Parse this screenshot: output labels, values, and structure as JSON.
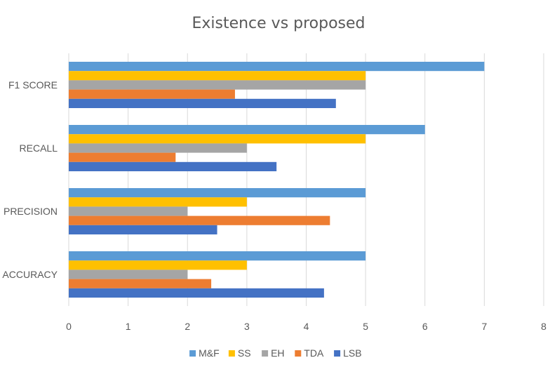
{
  "chart_data": {
    "type": "bar",
    "orientation": "horizontal",
    "title": "Existence vs proposed",
    "categories": [
      "F1 SCORE",
      "RECALL",
      "PRECISION",
      "ACCURACY"
    ],
    "series": [
      {
        "name": "M&F",
        "color": "#5b9bd5",
        "values": [
          7,
          6,
          5,
          5
        ]
      },
      {
        "name": "SS",
        "color": "#ffc000",
        "values": [
          5,
          5,
          3,
          3
        ]
      },
      {
        "name": "EH",
        "color": "#a5a5a5",
        "values": [
          5,
          3,
          2,
          2
        ]
      },
      {
        "name": "TDA",
        "color": "#ed7d31",
        "values": [
          2.8,
          1.8,
          4.4,
          2.4
        ]
      },
      {
        "name": "LSB",
        "color": "#4472c4",
        "values": [
          4.5,
          3.5,
          2.5,
          4.3
        ]
      }
    ],
    "xlim": [
      0,
      8
    ],
    "xticks": [
      "0",
      "1",
      "2",
      "3",
      "4",
      "5",
      "6",
      "7",
      "8"
    ],
    "grid": true,
    "legend_position": "bottom"
  }
}
